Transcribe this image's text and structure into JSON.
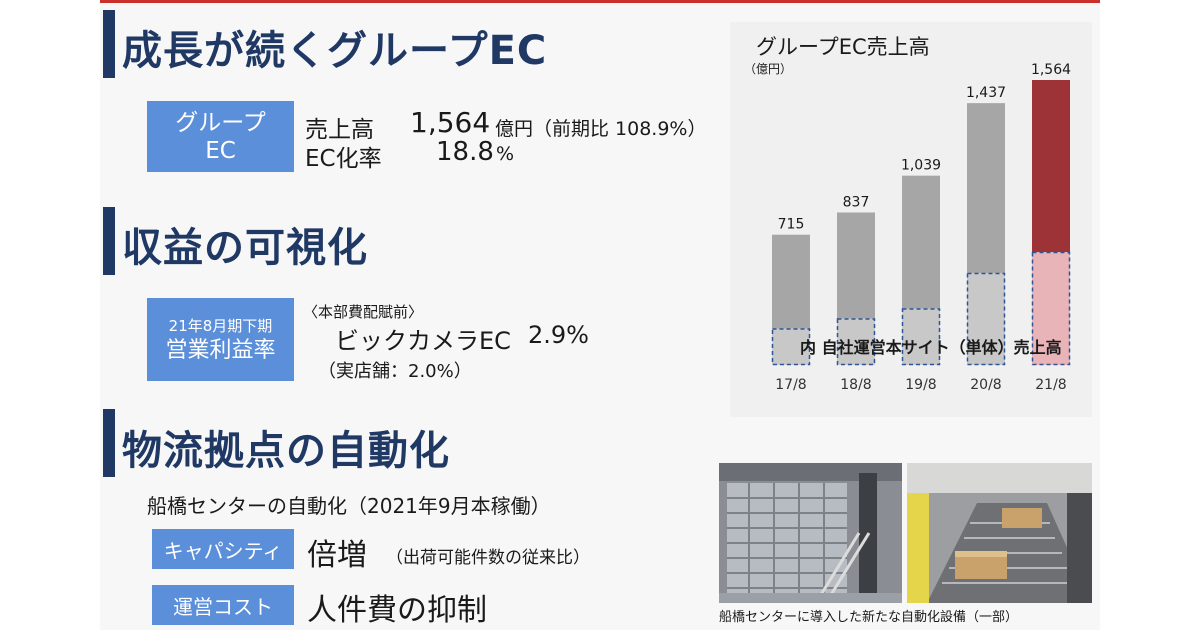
{
  "colors": {
    "navy": "#1f3864",
    "box_blue": "#5b8fd9",
    "bar_gray": "#a6a6a6",
    "bar_light": "#c8c8c8",
    "bar_red": "#9e3337",
    "bar_pink": "#e8b4b8",
    "dashed_blue": "#2f5597"
  },
  "section1": {
    "title": "成長が続くグループEC",
    "box_line1": "グループ",
    "box_line2": "EC",
    "row1_label": "売上高",
    "row1_value": "1,564",
    "row1_suffix": "億円（前期比 108.9%）",
    "row2_label": "EC化率",
    "row2_value": "18.8",
    "row2_suffix": "%"
  },
  "section2": {
    "title": "収益の可視化",
    "box_line1": "21年8月期下期",
    "box_line2": "営業利益率",
    "note": "〈本部費配賦前〉",
    "main_label": "ビックカメラEC",
    "main_value": "2.9%",
    "sub": "（実店舗：2.0%）"
  },
  "section3": {
    "title": "物流拠点の自動化",
    "subtitle": "船橋センターの自動化（2021年9月本稼働）",
    "box1": "キャパシティ",
    "box1_value": "倍増",
    "box1_note": "（出荷可能件数の従来比）",
    "box2": "運営コスト",
    "box2_value": "人件費の抑制",
    "photo_caption": "船橋センターに導入した新たな自動化設備（一部）"
  },
  "chart_data": {
    "type": "bar",
    "title": "グループEC売上高",
    "unit": "（億円）",
    "categories": [
      "17/8",
      "18/8",
      "19/8",
      "20/8",
      "21/8"
    ],
    "series": [
      {
        "name": "グループEC売上高",
        "values": [
          715,
          837,
          1039,
          1437,
          1564
        ]
      },
      {
        "name": "自社運営本サイト（単体）売上高",
        "values": [
          200,
          255,
          310,
          505,
          620
        ]
      }
    ],
    "data_labels": [
      "715",
      "837",
      "1,039",
      "1,437",
      "1,564"
    ],
    "annotation": "内 自社運営本サイト（単体）売上高",
    "highlight_category": "21/8",
    "ylim": [
      0,
      1564
    ]
  }
}
